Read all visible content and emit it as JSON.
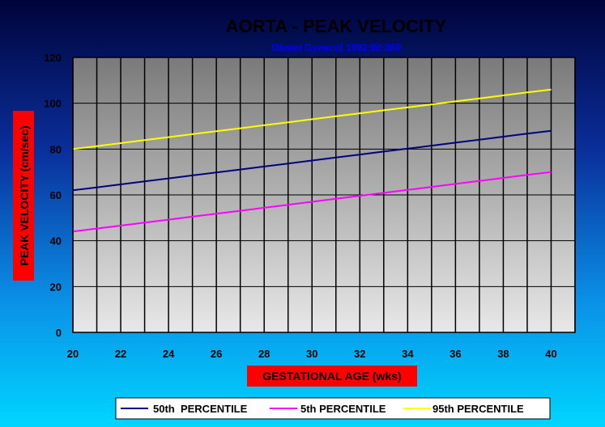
{
  "chart_data": {
    "type": "line",
    "title": "AORTA - PEAK VELOCITY",
    "subtitle": "Obstet Gynecol 1992;80:369",
    "xlabel": "GESTATIONAL AGE (wks)",
    "ylabel": "PEAK VELOCITY (cm/sec)",
    "xlim": [
      20,
      41
    ],
    "ylim": [
      0,
      120
    ],
    "x_ticks": [
      20,
      22,
      24,
      26,
      28,
      30,
      32,
      34,
      36,
      38,
      40
    ],
    "y_ticks": [
      0,
      20,
      40,
      60,
      80,
      100,
      120
    ],
    "grid": "vertical lines at each week; horizontal at y ticks",
    "legend_position": "bottom",
    "x": [
      20,
      21,
      22,
      23,
      24,
      25,
      26,
      27,
      28,
      29,
      30,
      31,
      32,
      33,
      34,
      35,
      36,
      37,
      38,
      39,
      40
    ],
    "series": [
      {
        "name": "50th  PERCENTILE",
        "color": "#000080",
        "values": [
          62,
          63.3,
          64.6,
          65.9,
          67.2,
          68.5,
          69.8,
          71.1,
          72.4,
          73.7,
          75,
          76.3,
          77.6,
          78.9,
          80.2,
          81.5,
          82.8,
          84.1,
          85.4,
          86.7,
          88
        ]
      },
      {
        "name": "5th PERCENTILE",
        "color": "#ff00ff",
        "values": [
          44,
          45.3,
          46.6,
          47.9,
          49.2,
          50.5,
          51.8,
          53.1,
          54.4,
          55.7,
          57,
          58.3,
          59.6,
          60.9,
          62.2,
          63.5,
          64.8,
          66.1,
          67.4,
          68.7,
          70
        ]
      },
      {
        "name": "95th PERCENTILE",
        "color": "#ffff00",
        "values": [
          80,
          81.3,
          82.6,
          83.9,
          85.2,
          86.5,
          87.8,
          89.1,
          90.4,
          91.7,
          93,
          94.3,
          95.6,
          96.9,
          98.2,
          99.5,
          100.8,
          102.1,
          103.4,
          104.7,
          106
        ]
      }
    ]
  },
  "colors": {
    "background_top": "#000000",
    "background_bottom": "#00ccff",
    "plot_top": "#7f7f7f",
    "plot_bottom": "#e6e6e6",
    "axis_label_box": "#ff0000",
    "subtitle": "#0000ff"
  }
}
